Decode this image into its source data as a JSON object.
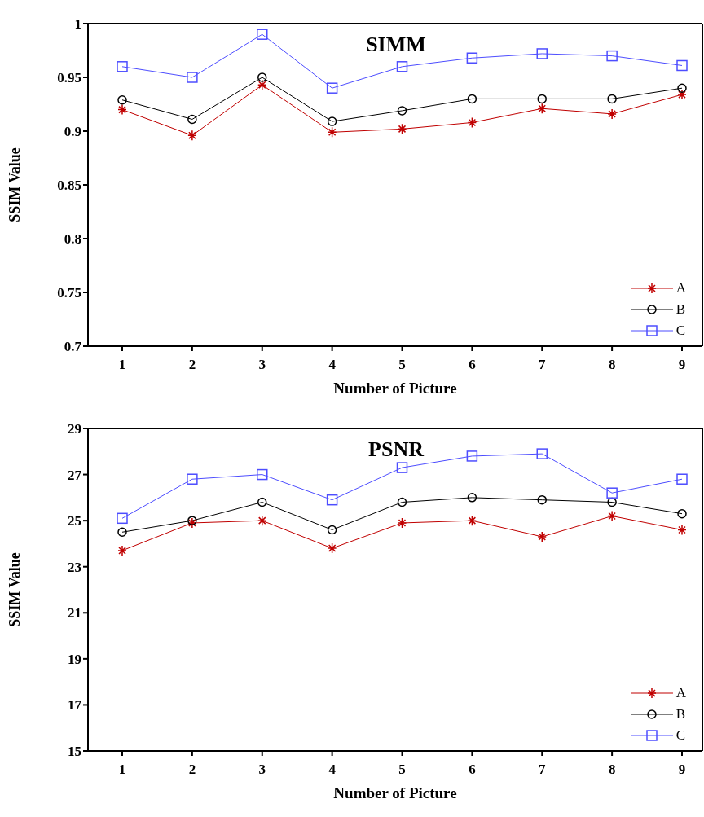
{
  "chart_data": [
    {
      "type": "line",
      "title": "SIMM",
      "xlabel": "Number of Picture",
      "ylabel": "SSIM Value",
      "categories": [
        "1",
        "2",
        "3",
        "4",
        "5",
        "6",
        "7",
        "8",
        "9"
      ],
      "ylim": [
        0.7,
        1
      ],
      "yticks": [
        0.7,
        0.75,
        0.8,
        0.85,
        0.9,
        0.95,
        1
      ],
      "grid": false,
      "legend": "bottom right",
      "series": [
        {
          "name": "A",
          "color": "#c00000",
          "marker": "cross",
          "values": [
            0.92,
            0.896,
            0.943,
            0.899,
            0.902,
            0.908,
            0.921,
            0.916,
            0.934
          ]
        },
        {
          "name": "B",
          "color": "#000000",
          "marker": "circle",
          "values": [
            0.929,
            0.911,
            0.95,
            0.909,
            0.919,
            0.93,
            0.93,
            0.93,
            0.94
          ]
        },
        {
          "name": "C",
          "color": "#4d4dff",
          "marker": "square",
          "values": [
            0.96,
            0.95,
            0.99,
            0.94,
            0.96,
            0.968,
            0.972,
            0.97,
            0.961
          ]
        }
      ]
    },
    {
      "type": "line",
      "title": "PSNR",
      "xlabel": "Number of Picture",
      "ylabel": "SSIM Value",
      "categories": [
        "1",
        "2",
        "3",
        "4",
        "5",
        "6",
        "7",
        "8",
        "9"
      ],
      "ylim": [
        15,
        29
      ],
      "yticks": [
        15,
        17,
        19,
        21,
        23,
        25,
        27,
        29
      ],
      "grid": false,
      "legend": "bottom right",
      "series": [
        {
          "name": "A",
          "color": "#c00000",
          "marker": "cross",
          "values": [
            23.7,
            24.9,
            25.0,
            23.8,
            24.9,
            25.0,
            24.3,
            25.2,
            24.6
          ]
        },
        {
          "name": "B",
          "color": "#000000",
          "marker": "circle",
          "values": [
            24.5,
            25.0,
            25.8,
            24.6,
            25.8,
            26.0,
            25.9,
            25.8,
            25.3
          ]
        },
        {
          "name": "C",
          "color": "#4d4dff",
          "marker": "square",
          "values": [
            25.1,
            26.8,
            27.0,
            25.9,
            27.3,
            27.8,
            27.9,
            26.2,
            26.8
          ]
        }
      ]
    }
  ]
}
